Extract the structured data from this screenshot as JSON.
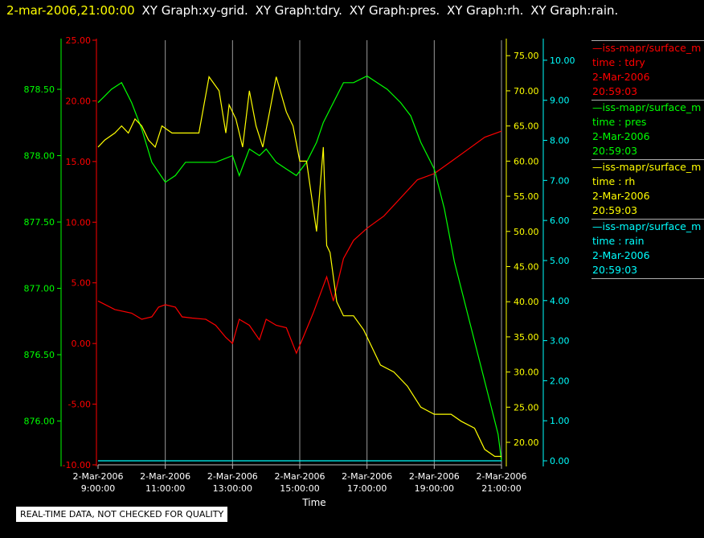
{
  "header": {
    "timestamp": "2-mar-2006,21:00:00",
    "titles": [
      "XY Graph:xy-grid.",
      "XY Graph:tdry.",
      "XY Graph:pres.",
      "XY Graph:rh.",
      "XY Graph:rain."
    ]
  },
  "note": "REAL-TIME DATA, NOT CHECKED FOR QUALITY",
  "legend": [
    {
      "source": "—iss-mapr/surface_m",
      "field": "time : tdry",
      "date": "2-Mar-2006",
      "time": "20:59:03",
      "color": "#ff0000"
    },
    {
      "source": "—iss-mapr/surface_m",
      "field": "time : pres",
      "date": "2-Mar-2006",
      "time": "20:59:03",
      "color": "#00ff00"
    },
    {
      "source": "—iss-mapr/surface_m",
      "field": "time : rh",
      "date": "2-Mar-2006",
      "time": "20:59:03",
      "color": "#ffff00"
    },
    {
      "source": "—iss-mapr/surface_m",
      "field": "time : rain",
      "date": "2-Mar-2006",
      "time": "20:59:03",
      "color": "#00ffff"
    }
  ],
  "chart_data": {
    "type": "line",
    "xlabel": "Time",
    "x_ticks": [
      {
        "date": "2-Mar-2006",
        "time": "9:00:00",
        "hour": 9
      },
      {
        "date": "2-Mar-2006",
        "time": "11:00:00",
        "hour": 11
      },
      {
        "date": "2-Mar-2006",
        "time": "13:00:00",
        "hour": 13
      },
      {
        "date": "2-Mar-2006",
        "time": "15:00:00",
        "hour": 15
      },
      {
        "date": "2-Mar-2006",
        "time": "17:00:00",
        "hour": 17
      },
      {
        "date": "2-Mar-2006",
        "time": "19:00:00",
        "hour": 19
      },
      {
        "date": "2-Mar-2006",
        "time": "21:00:00",
        "hour": 21
      }
    ],
    "xlim_hours": [
      9,
      21
    ],
    "grid_x": true,
    "axes": {
      "tdry": {
        "color": "#ff0000",
        "ylim": [
          -10,
          25
        ],
        "ticks": [
          "-10.00",
          "-5.00",
          "0.00",
          "5.00",
          "10.00",
          "15.00",
          "20.00",
          "25.00"
        ]
      },
      "pres": {
        "color": "#00ff00",
        "ylim": [
          875.67,
          878.87
        ],
        "ticks": [
          "876.00",
          "876.50",
          "877.00",
          "877.50",
          "878.00",
          "878.50"
        ]
      },
      "rh": {
        "color": "#ffff00",
        "ylim": [
          16.8,
          77.2
        ],
        "ticks": [
          "20.00",
          "25.00",
          "30.00",
          "35.00",
          "40.00",
          "45.00",
          "50.00",
          "55.00",
          "60.00",
          "65.00",
          "70.00",
          "75.00"
        ]
      },
      "rain": {
        "color": "#00ffff",
        "ylim": [
          -0.1,
          10.5
        ],
        "ticks": [
          "0.00",
          "1.00",
          "2.00",
          "3.00",
          "4.00",
          "5.00",
          "6.00",
          "7.00",
          "8.00",
          "9.00",
          "10.00"
        ]
      }
    },
    "series": [
      {
        "name": "tdry",
        "axis": "tdry",
        "color": "#ff0000",
        "x": [
          9.0,
          9.5,
          10.0,
          10.3,
          10.6,
          10.8,
          11.0,
          11.3,
          11.5,
          11.8,
          12.2,
          12.5,
          12.8,
          13.0,
          13.2,
          13.5,
          13.8,
          14.0,
          14.3,
          14.6,
          14.9,
          15.1,
          15.4,
          15.6,
          15.8,
          16.0,
          16.3,
          16.6,
          17.0,
          17.5,
          18.0,
          18.5,
          19.0,
          19.5,
          20.0,
          20.5,
          21.0
        ],
        "y": [
          3.5,
          2.8,
          2.5,
          2.0,
          2.2,
          3.0,
          3.2,
          3.0,
          2.2,
          2.1,
          2.0,
          1.5,
          0.5,
          0.0,
          2.0,
          1.5,
          0.3,
          2.0,
          1.5,
          1.3,
          -0.8,
          0.5,
          2.5,
          4.0,
          5.5,
          3.5,
          7.0,
          8.5,
          9.5,
          10.5,
          12.0,
          13.5,
          14.0,
          15.0,
          16.0,
          17.0,
          17.5
        ]
      },
      {
        "name": "pres",
        "axis": "pres",
        "color": "#00ff00",
        "x": [
          9.0,
          9.2,
          9.4,
          9.7,
          10.0,
          10.3,
          10.6,
          11.0,
          11.3,
          11.6,
          12.0,
          12.5,
          13.0,
          13.2,
          13.5,
          13.8,
          14.0,
          14.3,
          14.6,
          14.9,
          15.2,
          15.5,
          15.7,
          16.0,
          16.3,
          16.6,
          17.0,
          17.3,
          17.6,
          18.0,
          18.3,
          18.6,
          19.0,
          19.3,
          19.6,
          20.0,
          20.3,
          20.6,
          20.9,
          21.0
        ],
        "y": [
          878.4,
          878.45,
          878.5,
          878.55,
          878.4,
          878.2,
          877.95,
          877.8,
          877.85,
          877.95,
          877.95,
          877.95,
          878.0,
          877.85,
          878.05,
          878.0,
          878.05,
          877.95,
          877.9,
          877.85,
          877.95,
          878.1,
          878.25,
          878.4,
          878.55,
          878.55,
          878.6,
          878.55,
          878.5,
          878.4,
          878.3,
          878.1,
          877.9,
          877.6,
          877.2,
          876.8,
          876.5,
          876.2,
          875.9,
          875.7
        ]
      },
      {
        "name": "rh",
        "axis": "rh",
        "color": "#ffff00",
        "x": [
          9.0,
          9.2,
          9.5,
          9.7,
          9.9,
          10.1,
          10.3,
          10.5,
          10.7,
          10.9,
          11.2,
          11.5,
          11.8,
          12.0,
          12.3,
          12.6,
          12.8,
          12.9,
          13.1,
          13.3,
          13.5,
          13.7,
          13.9,
          14.1,
          14.3,
          14.6,
          14.8,
          15.0,
          15.2,
          15.5,
          15.7,
          15.8,
          15.9,
          16.1,
          16.3,
          16.6,
          16.9,
          17.2,
          17.4,
          17.8,
          18.2,
          18.6,
          19.0,
          19.5,
          19.8,
          20.2,
          20.5,
          20.8,
          21.0
        ],
        "y": [
          62,
          63,
          64,
          65,
          64,
          66,
          65,
          63,
          62,
          65,
          64,
          64,
          64,
          64,
          72,
          70,
          64,
          68,
          66,
          62,
          70,
          65,
          62,
          67,
          72,
          67,
          65,
          60,
          60,
          50,
          62,
          48,
          47,
          40,
          38,
          38,
          36,
          33,
          31,
          30,
          28,
          25,
          24,
          24,
          23,
          22,
          19,
          18,
          18
        ]
      },
      {
        "name": "rain",
        "axis": "rain",
        "color": "#00ffff",
        "x": [
          9.0,
          21.0
        ],
        "y": [
          0.0,
          0.0
        ]
      }
    ]
  }
}
